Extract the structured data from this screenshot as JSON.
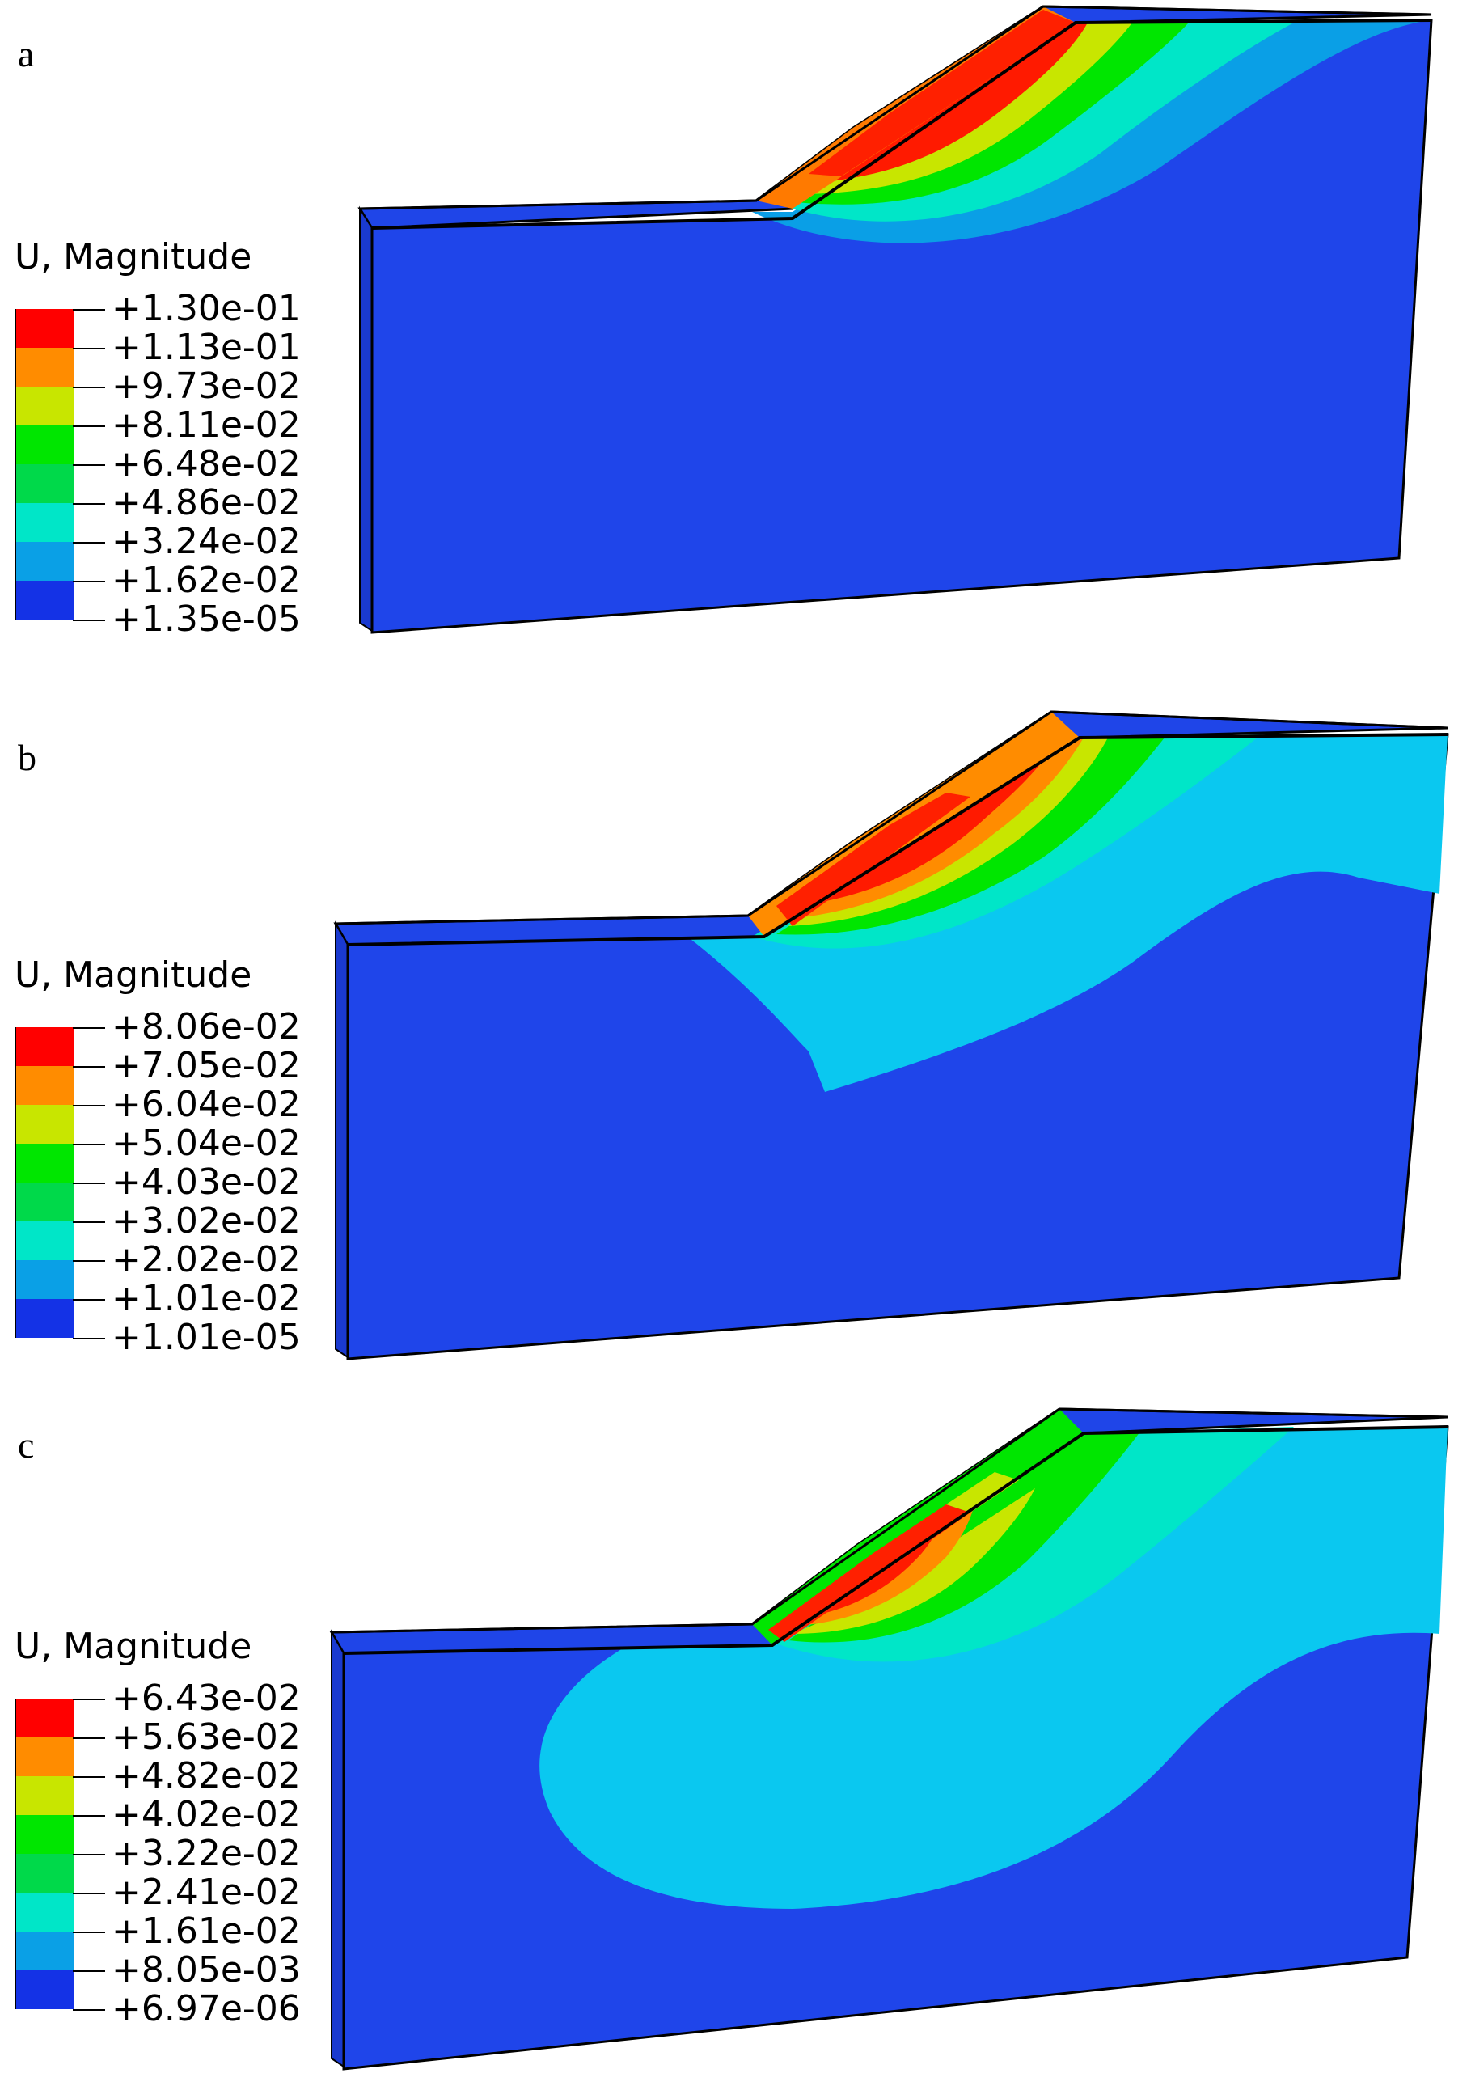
{
  "panels": [
    {
      "letter": "a",
      "legend_title": "U, Magnitude",
      "levels": [
        "+1.30e-01",
        "+1.13e-01",
        "+9.73e-02",
        "+8.11e-02",
        "+6.48e-02",
        "+4.86e-02",
        "+3.24e-02",
        "+1.62e-02",
        "+1.35e-05"
      ]
    },
    {
      "letter": "b",
      "legend_title": "U, Magnitude",
      "levels": [
        "+8.06e-02",
        "+7.05e-02",
        "+6.04e-02",
        "+5.04e-02",
        "+4.03e-02",
        "+3.02e-02",
        "+2.02e-02",
        "+1.01e-02",
        "+1.01e-05"
      ]
    },
    {
      "letter": "c",
      "legend_title": "U, Magnitude",
      "levels": [
        "+6.43e-02",
        "+5.63e-02",
        "+4.82e-02",
        "+4.02e-02",
        "+3.22e-02",
        "+2.41e-02",
        "+1.61e-02",
        "+8.05e-03",
        "+6.97e-06"
      ]
    }
  ],
  "colors": {
    "contour_scale": [
      "#ff0000",
      "#ff8c00",
      "#c8e600",
      "#00e600",
      "#00d94a",
      "#00e6c8",
      "#0aa0e6",
      "#1432e6"
    ],
    "edge": "#000000"
  }
}
